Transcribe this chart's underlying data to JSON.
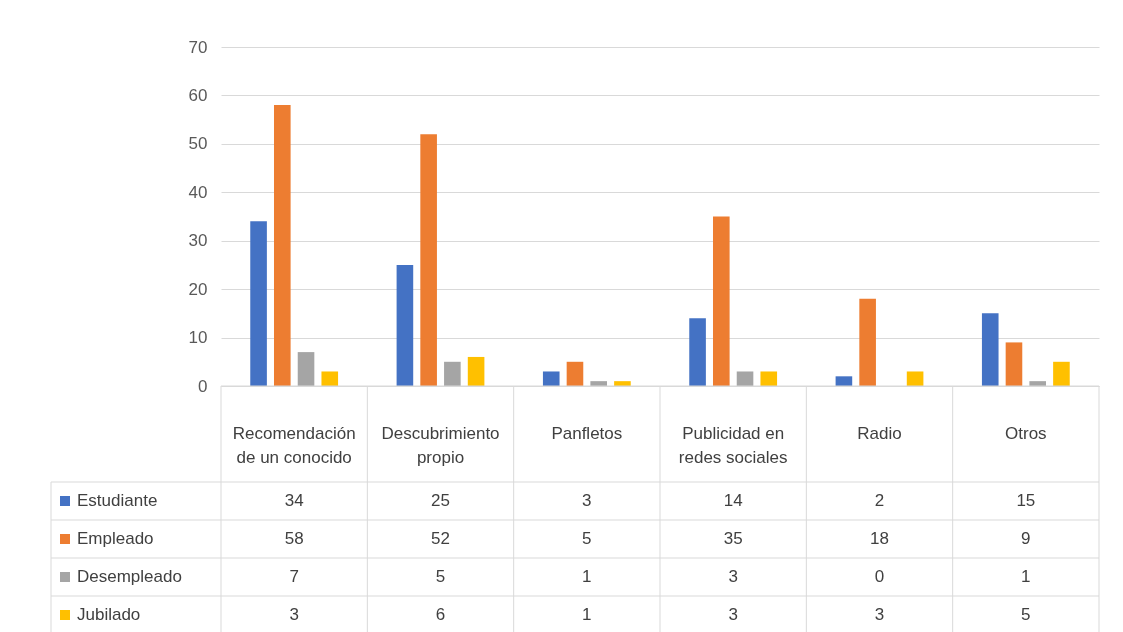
{
  "chart_data": {
    "type": "bar",
    "categories": [
      "Recomendación de un conocido",
      "Descubrimiento propio",
      "Panfletos",
      "Publicidad en redes sociales",
      "Radio",
      "Otros"
    ],
    "series": [
      {
        "name": "Estudiante",
        "color": "#4472c4",
        "values": [
          34,
          25,
          3,
          14,
          2,
          15
        ]
      },
      {
        "name": "Empleado",
        "color": "#ed7d31",
        "values": [
          58,
          52,
          5,
          35,
          18,
          9
        ]
      },
      {
        "name": "Desempleado",
        "color": "#a5a5a5",
        "values": [
          7,
          5,
          1,
          3,
          0,
          1
        ]
      },
      {
        "name": "Jubilado",
        "color": "#ffc000",
        "values": [
          3,
          6,
          1,
          3,
          3,
          5
        ]
      }
    ],
    "ylim": [
      0,
      70
    ],
    "yticks": [
      0,
      10,
      20,
      30,
      40,
      50,
      60,
      70
    ],
    "grid": "y",
    "legend": "bottom",
    "data_labels": true
  }
}
